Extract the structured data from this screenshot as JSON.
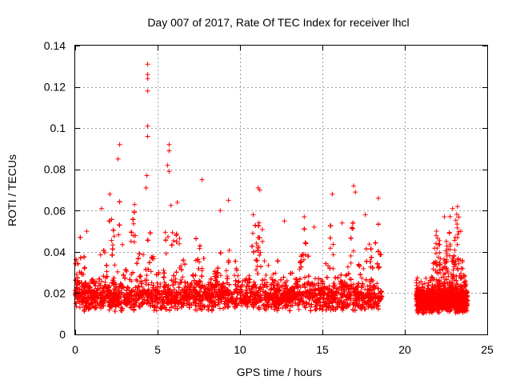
{
  "chart_data": {
    "type": "scatter",
    "title": "Day 007 of 2017, Rate Of TEC Index for receiver lhcl",
    "xlabel": "GPS time / hours",
    "ylabel": "ROTI / TECUs",
    "xlim": [
      0,
      25
    ],
    "ylim": [
      0,
      0.14
    ],
    "xticks": [
      0,
      5,
      10,
      15,
      20,
      25
    ],
    "xtick_labels": [
      "0",
      "5",
      "10",
      "15",
      "20",
      "25"
    ],
    "yticks": [
      0,
      0.02,
      0.04,
      0.06,
      0.08,
      0.1,
      0.12,
      0.14
    ],
    "ytick_labels": [
      "0",
      "0.02",
      "0.04",
      "0.06",
      "0.08",
      "0.1",
      "0.12",
      "0.14"
    ],
    "grid": true,
    "marker": "+",
    "color": "#ff0000",
    "segments": [
      {
        "name": "dense-0-18.6h",
        "x_range": [
          0,
          18.6
        ],
        "baseline": 0.015,
        "spread": 0.012
      },
      {
        "name": "dense-20.7-23.8h",
        "x_range": [
          20.7,
          23.8
        ],
        "baseline": 0.014,
        "spread": 0.01
      }
    ],
    "notable_points": [
      {
        "x": 4.4,
        "y": 0.131
      },
      {
        "x": 4.4,
        "y": 0.126
      },
      {
        "x": 4.4,
        "y": 0.124
      },
      {
        "x": 4.4,
        "y": 0.118
      },
      {
        "x": 4.4,
        "y": 0.101
      },
      {
        "x": 4.4,
        "y": 0.096
      },
      {
        "x": 4.35,
        "y": 0.077
      },
      {
        "x": 5.7,
        "y": 0.092
      },
      {
        "x": 5.7,
        "y": 0.089
      },
      {
        "x": 2.7,
        "y": 0.092
      },
      {
        "x": 2.6,
        "y": 0.085
      },
      {
        "x": 5.6,
        "y": 0.082
      },
      {
        "x": 5.7,
        "y": 0.079
      },
      {
        "x": 7.7,
        "y": 0.075
      },
      {
        "x": 4.3,
        "y": 0.071
      },
      {
        "x": 11.1,
        "y": 0.071
      },
      {
        "x": 11.2,
        "y": 0.07
      },
      {
        "x": 16.9,
        "y": 0.072
      },
      {
        "x": 17.0,
        "y": 0.069
      },
      {
        "x": 15.6,
        "y": 0.068
      },
      {
        "x": 9.3,
        "y": 0.065
      },
      {
        "x": 18.4,
        "y": 0.066
      },
      {
        "x": 23.2,
        "y": 0.062
      },
      {
        "x": 22.9,
        "y": 0.061
      },
      {
        "x": 13.9,
        "y": 0.057
      },
      {
        "x": 21.9,
        "y": 0.048
      },
      {
        "x": 22.4,
        "y": 0.057
      },
      {
        "x": 23.4,
        "y": 0.05
      },
      {
        "x": 3.6,
        "y": 0.063
      },
      {
        "x": 2.1,
        "y": 0.068
      },
      {
        "x": 1.6,
        "y": 0.061
      },
      {
        "x": 6.2,
        "y": 0.064
      },
      {
        "x": 8.8,
        "y": 0.06
      },
      {
        "x": 10.8,
        "y": 0.058
      },
      {
        "x": 12.7,
        "y": 0.055
      },
      {
        "x": 14.5,
        "y": 0.052
      },
      {
        "x": 16.2,
        "y": 0.054
      },
      {
        "x": 17.6,
        "y": 0.058
      },
      {
        "x": 0.7,
        "y": 0.05
      },
      {
        "x": 0.3,
        "y": 0.047
      }
    ],
    "x_peaks": [
      {
        "x": 0.3,
        "amp": 0.025
      },
      {
        "x": 1.6,
        "amp": 0.03
      },
      {
        "x": 2.2,
        "amp": 0.04
      },
      {
        "x": 2.7,
        "amp": 0.045
      },
      {
        "x": 3.6,
        "amp": 0.04
      },
      {
        "x": 4.4,
        "amp": 0.04
      },
      {
        "x": 5.7,
        "amp": 0.045
      },
      {
        "x": 6.3,
        "amp": 0.035
      },
      {
        "x": 7.5,
        "amp": 0.03
      },
      {
        "x": 8.8,
        "amp": 0.025
      },
      {
        "x": 9.5,
        "amp": 0.028
      },
      {
        "x": 10.9,
        "amp": 0.035
      },
      {
        "x": 11.2,
        "amp": 0.04
      },
      {
        "x": 13.9,
        "amp": 0.035
      },
      {
        "x": 15.6,
        "amp": 0.035
      },
      {
        "x": 16.9,
        "amp": 0.04
      },
      {
        "x": 17.8,
        "amp": 0.03
      },
      {
        "x": 18.4,
        "amp": 0.035
      },
      {
        "x": 22.0,
        "amp": 0.03
      },
      {
        "x": 22.6,
        "amp": 0.03
      },
      {
        "x": 23.2,
        "amp": 0.04
      }
    ]
  }
}
